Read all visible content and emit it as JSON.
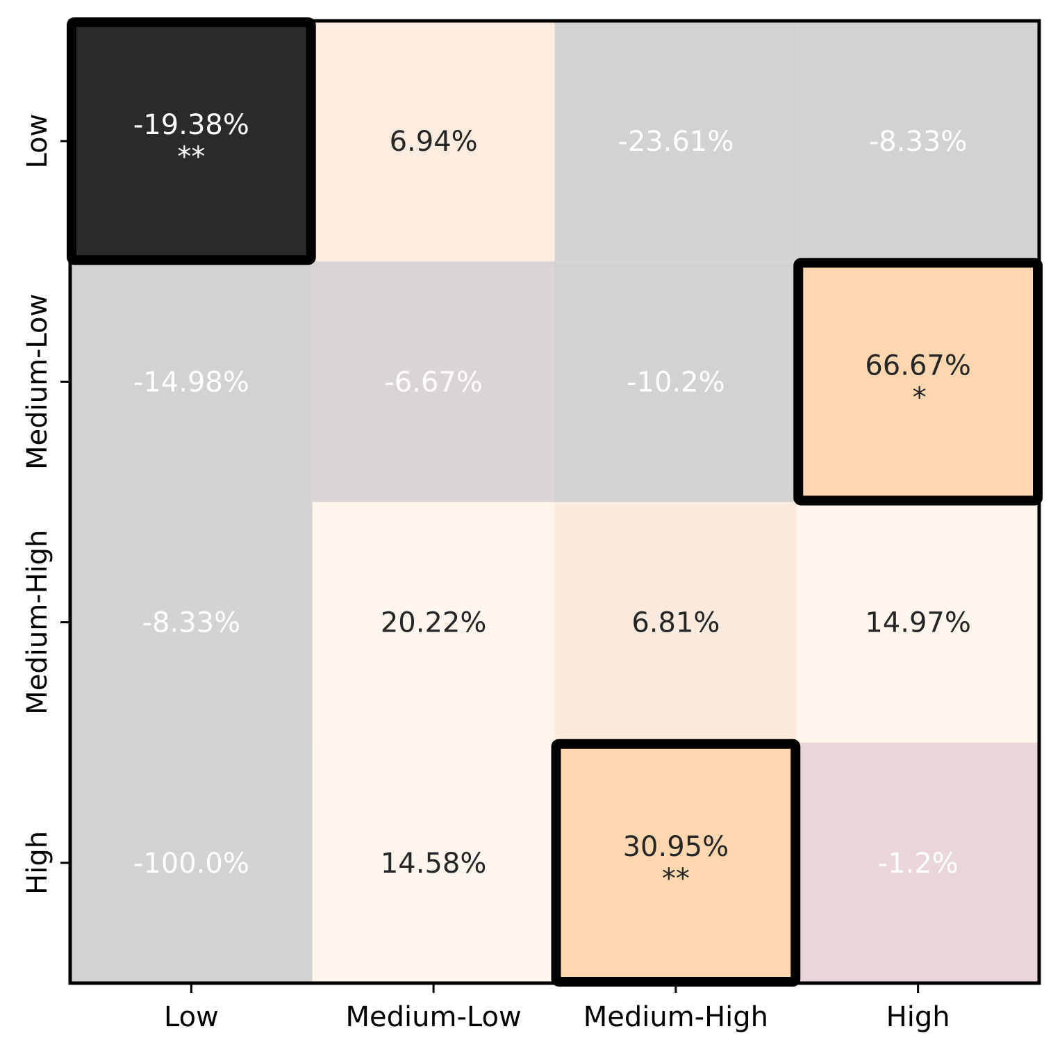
{
  "chart_data": {
    "type": "heatmap",
    "title": "",
    "xlabel": "",
    "ylabel": "",
    "x_categories": [
      "Low",
      "Medium-Low",
      "Medium-High",
      "High"
    ],
    "y_categories": [
      "Low",
      "Medium-Low",
      "Medium-High",
      "High"
    ],
    "values": [
      [
        -19.38,
        6.94,
        -23.61,
        -8.33
      ],
      [
        -14.98,
        -6.67,
        -10.2,
        66.67
      ],
      [
        -8.33,
        20.22,
        6.81,
        14.97
      ],
      [
        -100.0,
        14.58,
        30.95,
        -1.2
      ]
    ],
    "labels": [
      [
        "-19.38%",
        "6.94%",
        "-23.61%",
        "-8.33%"
      ],
      [
        "-14.98%",
        "-6.67%",
        "-10.2%",
        "66.67%"
      ],
      [
        "-8.33%",
        "20.22%",
        "6.81%",
        "14.97%"
      ],
      [
        "-100.0%",
        "14.58%",
        "30.95%",
        "-1.2%"
      ]
    ],
    "significance": [
      [
        "**",
        "",
        "",
        ""
      ],
      [
        "",
        "",
        "",
        "*"
      ],
      [
        "",
        "",
        "",
        ""
      ],
      [
        "",
        "",
        "**",
        ""
      ]
    ],
    "cell_colors": [
      [
        "#2a2a2a",
        "#fcebdf",
        "#d2d2d2",
        "#d2d2d2"
      ],
      [
        "#d2d2d2",
        "#dad4d4",
        "#d2d2d2",
        "#fed6b0"
      ],
      [
        "#d4d2d3",
        "#fef5ec",
        "#fbebdf",
        "#fef6ec"
      ],
      [
        "#d2d2d2",
        "#fef5ec",
        "#fed6b0",
        "#ead5d8"
      ]
    ],
    "text_colors": [
      [
        "#ffffff",
        "#262626",
        "#ffffff",
        "#ffffff"
      ],
      [
        "#ffffff",
        "#ffffff",
        "#ffffff",
        "#262626"
      ],
      [
        "#ffffff",
        "#262626",
        "#262626",
        "#262626"
      ],
      [
        "#ffffff",
        "#262626",
        "#262626",
        "#ffffff"
      ]
    ],
    "highlighted": [
      [
        true,
        false,
        false,
        false
      ],
      [
        false,
        false,
        false,
        true
      ],
      [
        false,
        false,
        false,
        false
      ],
      [
        false,
        false,
        true,
        false
      ]
    ],
    "grid": false,
    "legend": "none"
  }
}
